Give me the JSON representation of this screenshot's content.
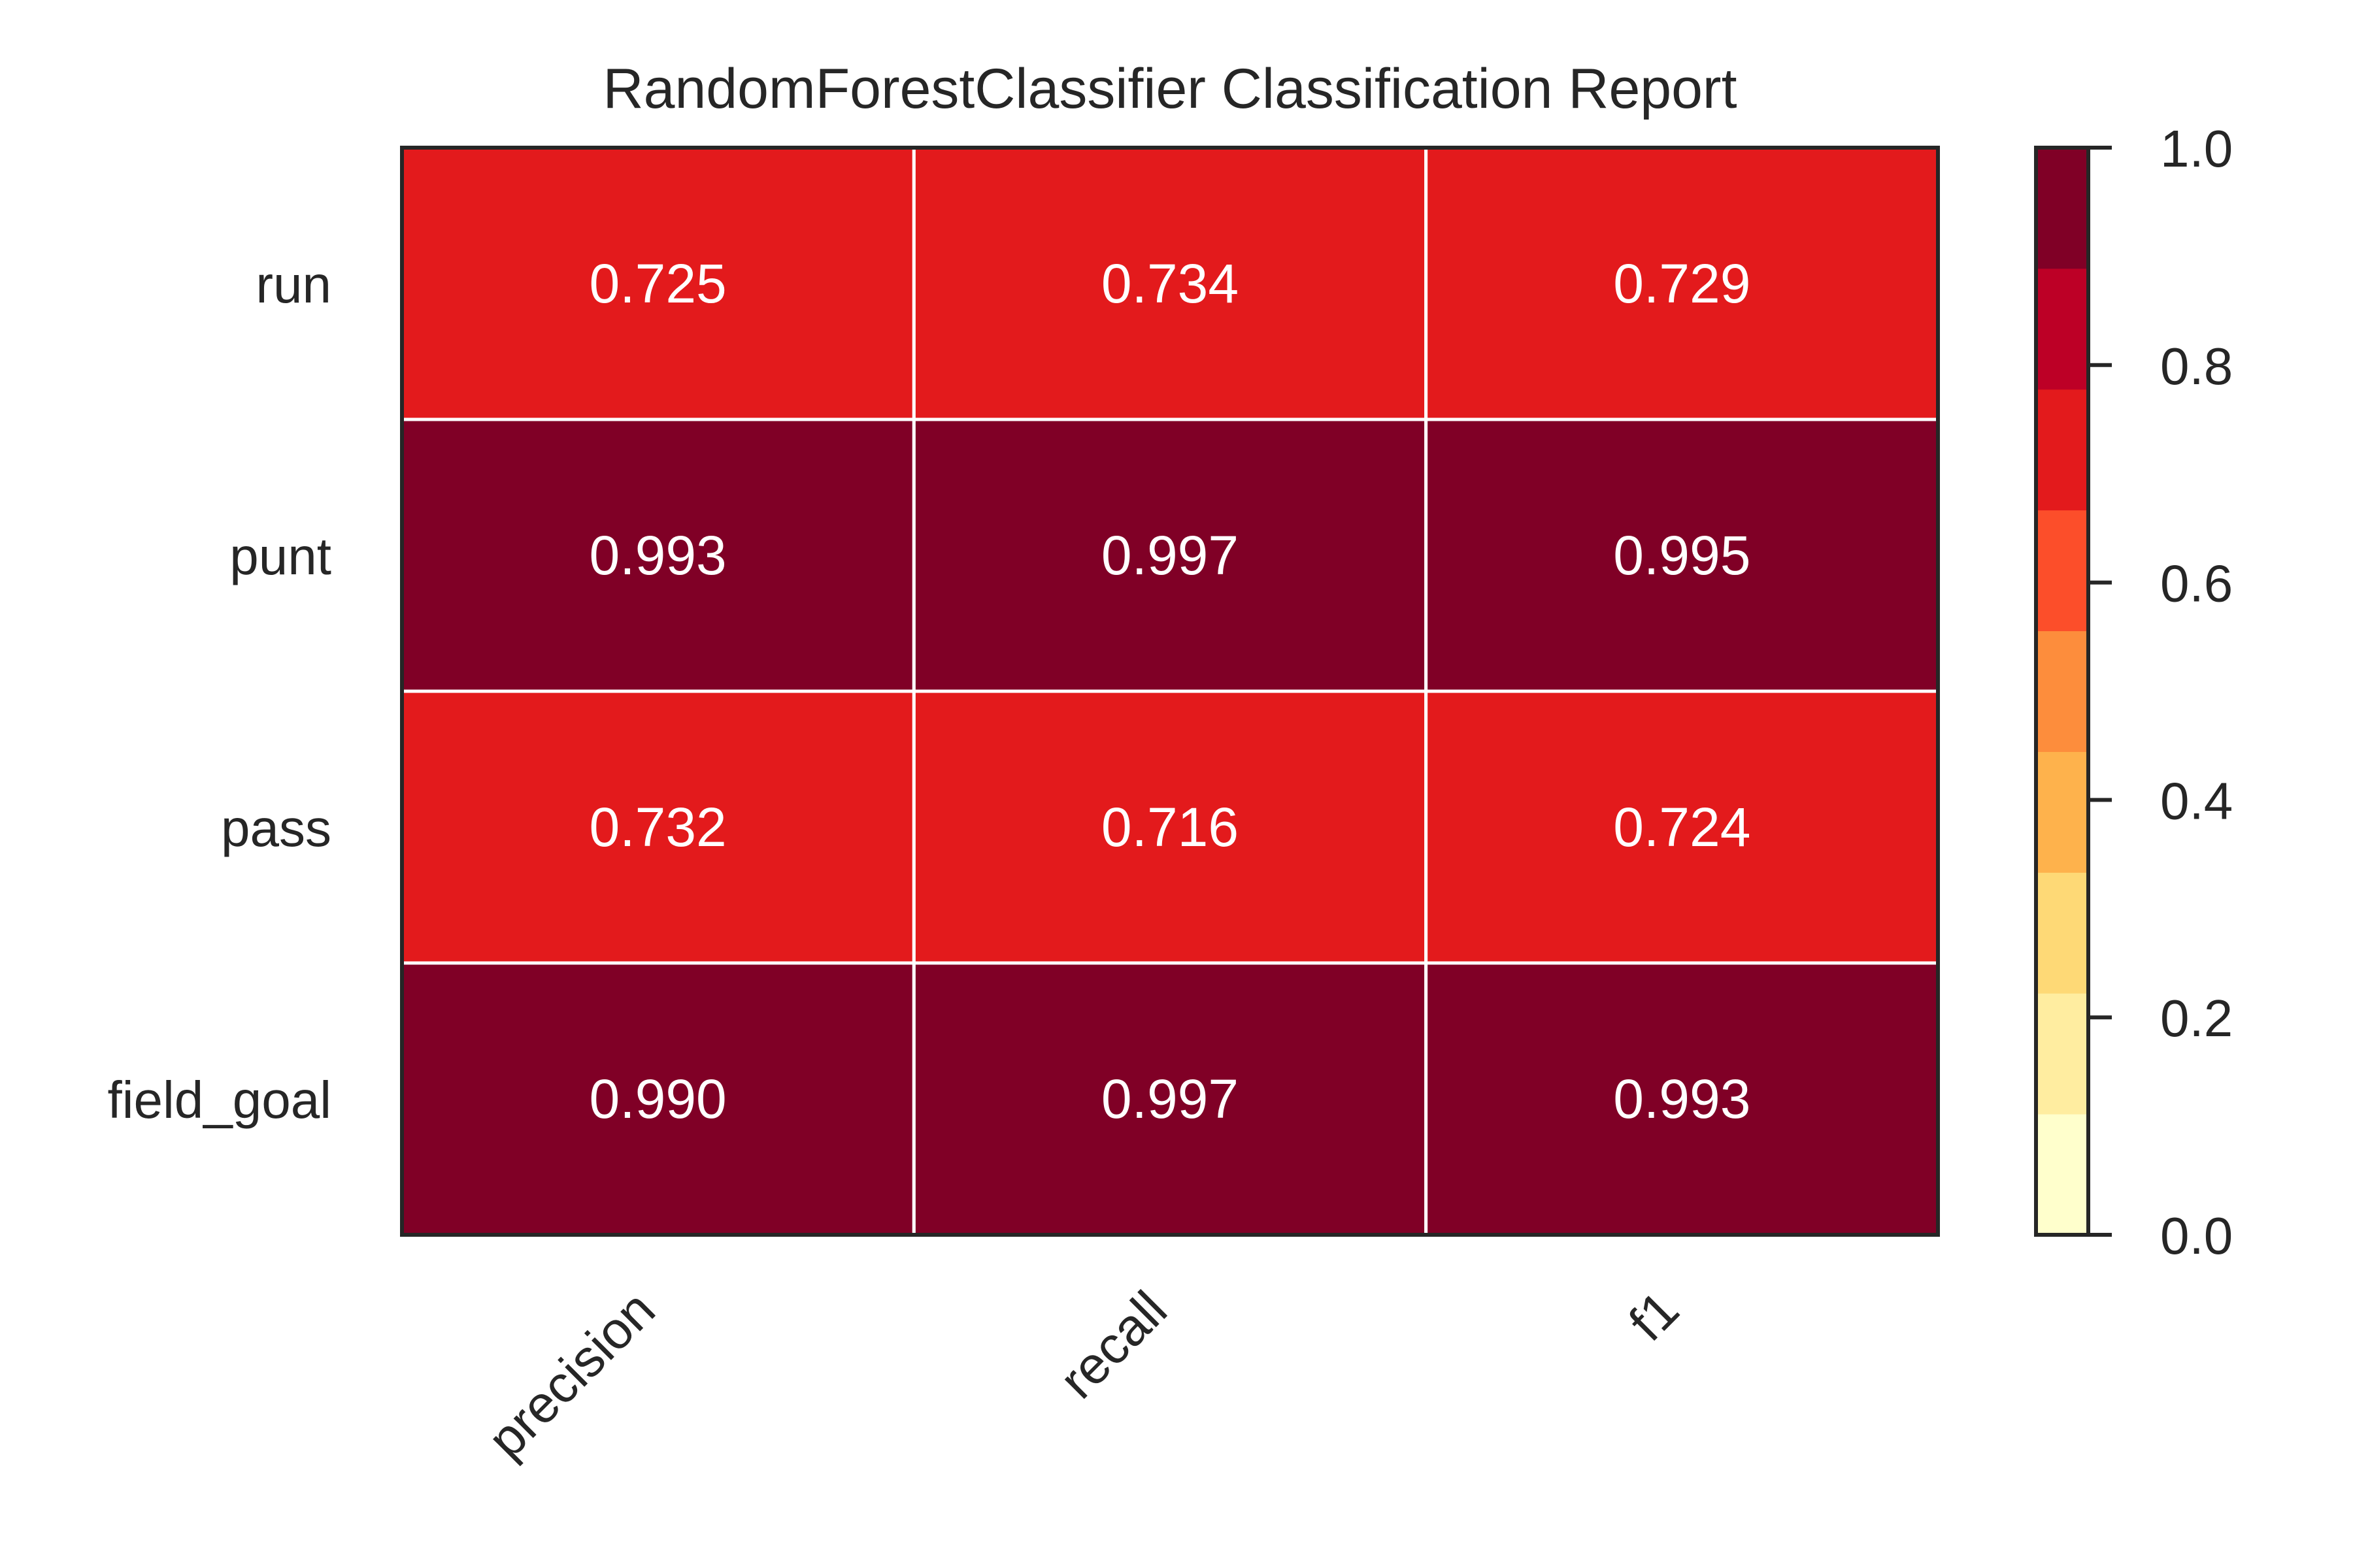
{
  "chart_data": {
    "type": "heatmap",
    "title": "RandomForestClassifier Classification Report",
    "columns": [
      "precision",
      "recall",
      "f1"
    ],
    "rows": [
      "run",
      "punt",
      "pass",
      "field_goal"
    ],
    "values": [
      [
        0.725,
        0.734,
        0.729
      ],
      [
        0.993,
        0.997,
        0.995
      ],
      [
        0.732,
        0.716,
        0.724
      ],
      [
        0.99,
        0.997,
        0.993
      ]
    ],
    "colorbar": {
      "range": [
        0.0,
        1.0
      ],
      "ticks": [
        "0.0",
        "0.2",
        "0.4",
        "0.6",
        "0.8",
        "1.0"
      ],
      "colors": [
        "#ffffcc",
        "#ffeda0",
        "#fed976",
        "#feb24c",
        "#fd8d3c",
        "#fc4e2a",
        "#e31a1c",
        "#bd0026",
        "#800026"
      ]
    },
    "cell_text_color": "#ffffff",
    "text_color": "#262626",
    "grid_line_color": "#ffffff",
    "frame_color": "#262626"
  }
}
